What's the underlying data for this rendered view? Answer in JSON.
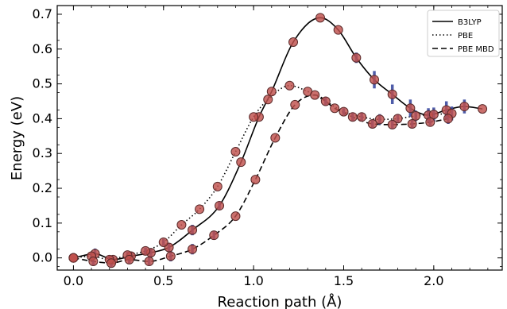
{
  "chart_data": {
    "type": "line",
    "title": "",
    "xlabel": "Reaction path (Å)",
    "ylabel": "Energy (eV)",
    "xlim": [
      -0.09,
      2.38
    ],
    "ylim": [
      -0.035,
      0.725
    ],
    "xticks": [
      0.0,
      0.5,
      1.0,
      1.5,
      2.0
    ],
    "xtick_labels": [
      "0.0",
      "0.5",
      "1.0",
      "1.5",
      "2.0"
    ],
    "yticks": [
      0.0,
      0.1,
      0.2,
      0.3,
      0.4,
      0.5,
      0.6,
      0.7
    ],
    "ytick_labels": [
      "0.0",
      "0.1",
      "0.2",
      "0.3",
      "0.4",
      "0.5",
      "0.6",
      "0.7"
    ],
    "grid": false,
    "legend_position": "top-right",
    "colors": {
      "marker_fill": "#c0504d",
      "marker_edge": "#5a2a2a",
      "error_bar": "#3b4aa0",
      "line": "#000000"
    },
    "series": [
      {
        "name": "B3LYP",
        "style": "solid",
        "x": [
          0.0,
          0.12,
          0.22,
          0.32,
          0.43,
          0.53,
          0.66,
          0.81,
          0.93,
          1.03,
          1.1,
          1.22,
          1.37,
          1.47,
          1.57,
          1.67,
          1.77,
          1.87,
          1.97,
          2.07,
          2.17,
          2.27
        ],
        "y": [
          0.0,
          0.012,
          -0.005,
          0.005,
          0.015,
          0.03,
          0.08,
          0.15,
          0.275,
          0.405,
          0.478,
          0.62,
          0.69,
          0.655,
          0.575,
          0.512,
          0.47,
          0.43,
          0.41,
          0.425,
          0.435,
          0.428
        ],
        "error_bars": [
          0,
          0.015,
          0.01,
          0.012,
          0.012,
          0.012,
          0.015,
          0.012,
          0,
          0,
          0,
          0,
          0,
          0,
          0.015,
          0.025,
          0.028,
          0.025,
          0.02,
          0.025,
          0.02,
          0
        ]
      },
      {
        "name": "PBE",
        "style": "dotted",
        "x": [
          0.0,
          0.1,
          0.2,
          0.3,
          0.4,
          0.5,
          0.6,
          0.7,
          0.8,
          0.9,
          1.0,
          1.08,
          1.2,
          1.3,
          1.4,
          1.5,
          1.6,
          1.7,
          1.8,
          1.9,
          2.0,
          2.1
        ],
        "y": [
          0.0,
          0.005,
          -0.005,
          0.008,
          0.02,
          0.045,
          0.095,
          0.14,
          0.205,
          0.305,
          0.405,
          0.455,
          0.495,
          0.478,
          0.45,
          0.42,
          0.405,
          0.398,
          0.4,
          0.408,
          0.412,
          0.415
        ],
        "error_bars": [
          0,
          0.012,
          0.012,
          0.01,
          0.01,
          0.01,
          0,
          0,
          0,
          0,
          0,
          0,
          0,
          0,
          0.012,
          0.01,
          0.012,
          0.015,
          0.012,
          0.015,
          0.02,
          0.02
        ]
      },
      {
        "name": "PBE MBD",
        "style": "dashed",
        "x": [
          0.0,
          0.11,
          0.21,
          0.31,
          0.42,
          0.54,
          0.66,
          0.78,
          0.9,
          1.01,
          1.12,
          1.23,
          1.34,
          1.45,
          1.55,
          1.66,
          1.77,
          1.88,
          1.98,
          2.08
        ],
        "y": [
          0.0,
          -0.01,
          -0.015,
          -0.005,
          -0.01,
          0.005,
          0.025,
          0.065,
          0.12,
          0.225,
          0.345,
          0.44,
          0.468,
          0.43,
          0.405,
          0.385,
          0.383,
          0.385,
          0.39,
          0.4
        ],
        "error_bars": [
          0,
          0.012,
          0.012,
          0.012,
          0.012,
          0.015,
          0.015,
          0.012,
          0,
          0,
          0,
          0,
          0,
          0,
          0.012,
          0.012,
          0.012,
          0.012,
          0.01,
          0.015
        ]
      }
    ]
  }
}
